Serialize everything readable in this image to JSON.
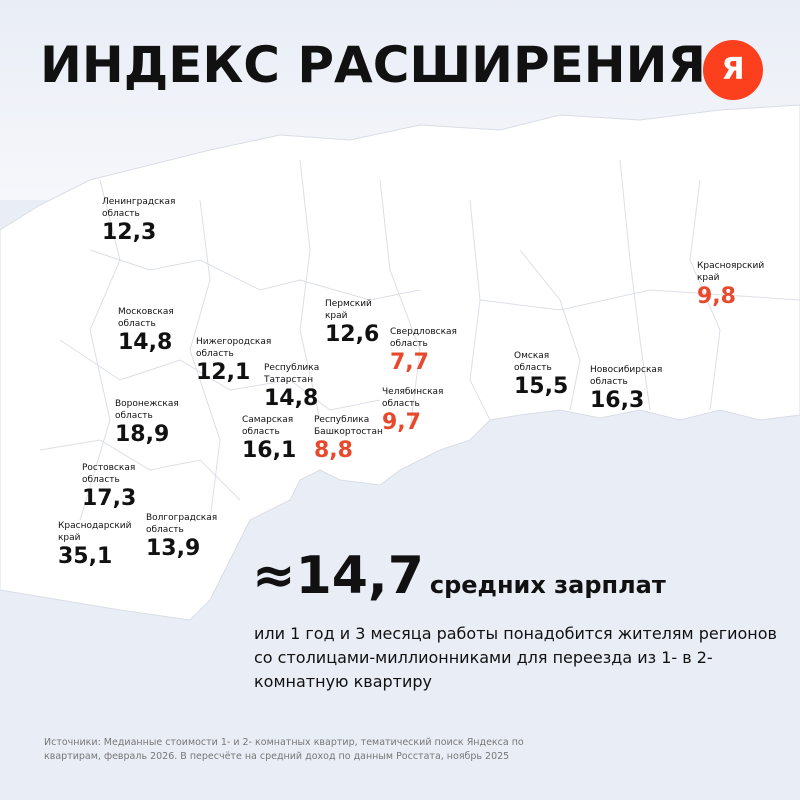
{
  "title": "ИНДЕКС РАСШИРЕНИЯ",
  "logo": "Я",
  "colors": {
    "normal": "#111111",
    "highlight": "#e8482b",
    "logo": "#fc3f1d",
    "background": "#e9edf6"
  },
  "regions": [
    {
      "name": "Ленинградская область",
      "value": "12,3",
      "highlight": false
    },
    {
      "name": "Московская область",
      "value": "14,8",
      "highlight": false
    },
    {
      "name": "Нижегородская область",
      "value": "12,1",
      "highlight": false
    },
    {
      "name": "Республика Татарстан",
      "value": "14,8",
      "highlight": false
    },
    {
      "name": "Пермский край",
      "value": "12,6",
      "highlight": false
    },
    {
      "name": "Свердловская область",
      "value": "7,7",
      "highlight": true
    },
    {
      "name": "Челябинская область",
      "value": "9,7",
      "highlight": true
    },
    {
      "name": "Республика Башкортостан",
      "value": "8,8",
      "highlight": true
    },
    {
      "name": "Самарская область",
      "value": "16,1",
      "highlight": false
    },
    {
      "name": "Воронежская область",
      "value": "18,9",
      "highlight": false
    },
    {
      "name": "Ростовская область",
      "value": "17,3",
      "highlight": false
    },
    {
      "name": "Краснодарский край",
      "value": "35,1",
      "highlight": false
    },
    {
      "name": "Волгоградская область",
      "value": "13,9",
      "highlight": false
    },
    {
      "name": "Омская область",
      "value": "15,5",
      "highlight": false
    },
    {
      "name": "Новосибирская область",
      "value": "16,3",
      "highlight": false
    },
    {
      "name": "Красноярский край",
      "value": "9,8",
      "highlight": true
    }
  ],
  "summary": {
    "value": "≈14,7",
    "unit": "средних зарплат",
    "description": "или 1 год и 3 месяца работы понадобится жителям регионов со столицами-миллионниками для переезда из 1- в 2-комнатную квартиру"
  },
  "source": "Источники: Медианные стоимости 1- и 2- комнатных квартир, тематический поиск Яндекса по квартирам, февраль 2026. В пересчёте на средний доход по данным Росстата, ноябрь 2025"
}
